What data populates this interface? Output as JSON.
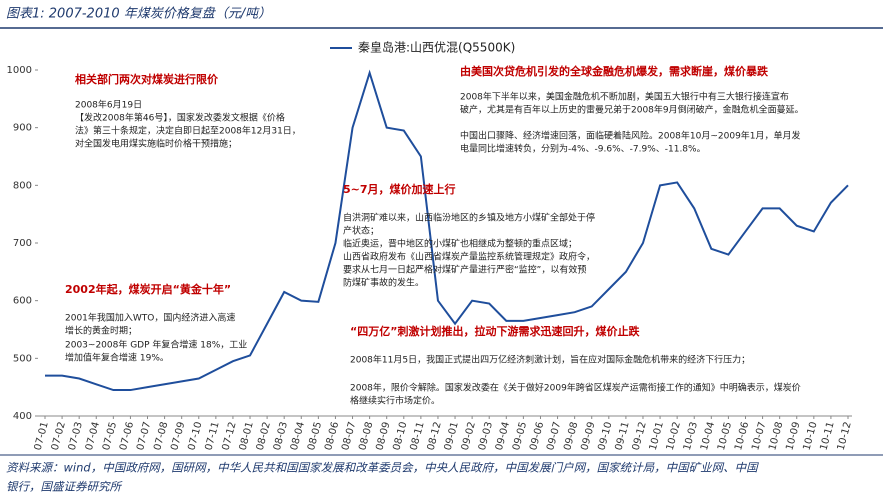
{
  "header": {
    "title": "图表1:  2007-2010 年煤炭价格复盘（元/吨）"
  },
  "chart_data": {
    "type": "line",
    "categories": [
      "07-01",
      "07-02",
      "07-03",
      "07-04",
      "07-05",
      "07-06",
      "07-07",
      "07-08",
      "07-09",
      "07-10",
      "07-11",
      "07-12",
      "08-01",
      "08-02",
      "08-03",
      "08-04",
      "08-05",
      "08-06",
      "08-07",
      "08-08",
      "08-09",
      "08-10",
      "08-11",
      "08-12",
      "09-01",
      "09-02",
      "09-03",
      "09-04",
      "09-05",
      "09-06",
      "09-07",
      "09-08",
      "09-09",
      "09-10",
      "09-11",
      "09-12",
      "10-01",
      "10-02",
      "10-03",
      "10-04",
      "10-05",
      "10-06",
      "10-07",
      "10-08",
      "10-09",
      "10-10",
      "10-11",
      "10-12"
    ],
    "series": [
      {
        "name": "秦皇岛港:山西优混(Q5500K)",
        "color": "#1f4e9c",
        "values": [
          470,
          470,
          465,
          455,
          445,
          445,
          450,
          455,
          460,
          465,
          480,
          495,
          505,
          560,
          615,
          600,
          598,
          700,
          900,
          995,
          900,
          895,
          850,
          600,
          560,
          600,
          595,
          565,
          565,
          570,
          575,
          580,
          590,
          620,
          650,
          700,
          800,
          805,
          760,
          690,
          680,
          720,
          760,
          760,
          730,
          720,
          770,
          800
        ]
      }
    ],
    "ylim": [
      400,
      1000
    ],
    "yticks": [
      400,
      500,
      600,
      700,
      800,
      900,
      1000
    ],
    "legend": "top"
  },
  "annotations": [
    {
      "title": "相关部门两次对煤炭进行限价",
      "lines": [
        "2008年6月19日",
        "【发改2008年第46号】，国家发改委发文根据《价格",
        "法》第三十条规定，决定自即日起至2008年12月31日，",
        "对全国发电用煤实施临时价格干预措施；"
      ]
    },
    {
      "title": "由美国次贷危机引发的全球金融危机爆发，需求断崖，煤价暴跌",
      "lines": [
        "2008年下半年以来，美国金融危机不断加剧，美国五大银行中有三大银行接连宣布",
        "破产，尤其是有百年以上历史的雷曼兄弟于2008年9月倒闭破产，金融危机全面蔓延。",
        "中国出口骤降、经济增速回落，面临硬着陆风险。2008年10月~2009年1月，单月发",
        "电量同比增速转负，分别为-4%、-9.6%、-7.9%、-11.8%。"
      ]
    },
    {
      "title": "5~7月，煤价加速上行",
      "lines": [
        "自洪洞矿难以来，山西临汾地区的乡镇及地方小煤矿全部处于停",
        "产状态；",
        "临近奥运，晋中地区的小煤矿也相继成为整顿的重点区域；",
        "山西省政府发布《山西省煤炭产量监控系统管理规定》政府令，",
        "要求从七月一日起严格对煤矿产量进行严密“监控”，以有效预",
        "防煤矿事故的发生。"
      ]
    },
    {
      "title": "2002年起，煤炭开启“黄金十年”",
      "lines": [
        "2001年我国加入WTO，国内经济进入高速",
        "增长的黄金时期；",
        "2003~2008年 GDP 年复合增速 18%，工业",
        "增加值年复合增速 19%。"
      ]
    },
    {
      "title": "“四万亿”刺激计划推出，拉动下游需求迅速回升，煤价止跌",
      "lines": [
        "2008年11月5日，我国正式提出四万亿经济刺激计划，旨在应对国际金融危机带来的经济下行压力；",
        "2008年，限价令解除。国家发改委在《关于做好2009年跨省区煤炭产运需衔接工作的通知》中明确表示，煤炭价",
        "格继续实行市场定价。"
      ]
    }
  ],
  "source": [
    "资料来源：wind，中国政府网，国研网，中华人民共和国国家发展和改革委员会，中央人民政府，中国发展门户网，国家统计局，中国矿业网、中国",
    "银行，国盛证券研究所"
  ]
}
